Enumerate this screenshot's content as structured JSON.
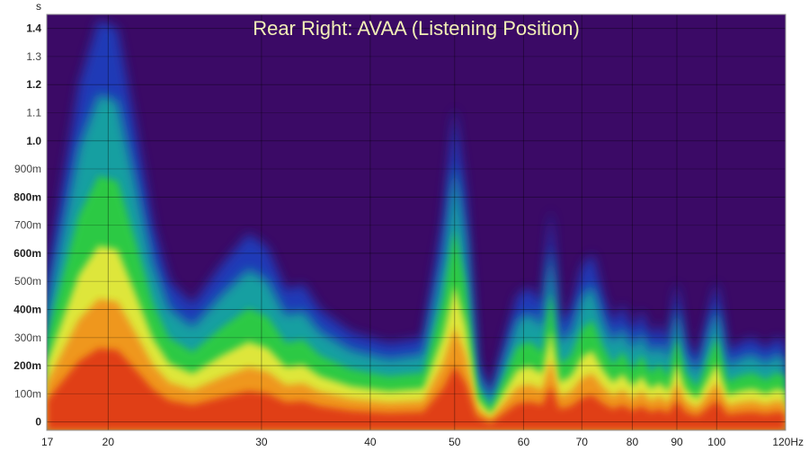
{
  "chart_data": {
    "type": "heatmap",
    "subtype": "spectrogram",
    "title": "Rear Right: AVAA (Listening Position)",
    "x_scale": "log",
    "xlim": [
      17,
      120
    ],
    "ylim": [
      -0.03,
      1.45
    ],
    "y_unit_label": "s",
    "x_unit_label": "Hz",
    "grid": true,
    "background_color": "#3b0a66",
    "y_ticks": [
      {
        "value": 1.4,
        "label": "1.4",
        "major": true
      },
      {
        "value": 1.3,
        "label": "1.3",
        "major": false
      },
      {
        "value": 1.2,
        "label": "1.2",
        "major": true
      },
      {
        "value": 1.1,
        "label": "1.1",
        "major": false
      },
      {
        "value": 1.0,
        "label": "1.0",
        "major": true
      },
      {
        "value": 0.9,
        "label": "900m",
        "major": false
      },
      {
        "value": 0.8,
        "label": "800m",
        "major": true
      },
      {
        "value": 0.7,
        "label": "700m",
        "major": false
      },
      {
        "value": 0.6,
        "label": "600m",
        "major": true
      },
      {
        "value": 0.5,
        "label": "500m",
        "major": false
      },
      {
        "value": 0.4,
        "label": "400m",
        "major": true
      },
      {
        "value": 0.3,
        "label": "300m",
        "major": false
      },
      {
        "value": 0.2,
        "label": "200m",
        "major": true
      },
      {
        "value": 0.1,
        "label": "100m",
        "major": false
      },
      {
        "value": 0.0,
        "label": "0",
        "major": true
      }
    ],
    "x_ticks": [
      {
        "value": 17,
        "label": "17"
      },
      {
        "value": 20,
        "label": "20"
      },
      {
        "value": 30,
        "label": "30"
      },
      {
        "value": 40,
        "label": "40"
      },
      {
        "value": 50,
        "label": "50"
      },
      {
        "value": 60,
        "label": "60"
      },
      {
        "value": 70,
        "label": "70"
      },
      {
        "value": 80,
        "label": "80"
      },
      {
        "value": 90,
        "label": "90"
      },
      {
        "value": 100,
        "label": "100"
      },
      {
        "value": 120,
        "label": "120Hz"
      }
    ],
    "decay_envelope": [
      {
        "hz": 17,
        "t": 0.5
      },
      {
        "hz": 18.5,
        "t": 1.2
      },
      {
        "hz": 19.5,
        "t": 1.43
      },
      {
        "hz": 20.5,
        "t": 1.4
      },
      {
        "hz": 21.5,
        "t": 1.05
      },
      {
        "hz": 22.5,
        "t": 0.7
      },
      {
        "hz": 23.5,
        "t": 0.5
      },
      {
        "hz": 25,
        "t": 0.42
      },
      {
        "hz": 27,
        "t": 0.56
      },
      {
        "hz": 29,
        "t": 0.67
      },
      {
        "hz": 30.5,
        "t": 0.62
      },
      {
        "hz": 32,
        "t": 0.47
      },
      {
        "hz": 33.5,
        "t": 0.49
      },
      {
        "hz": 35,
        "t": 0.4
      },
      {
        "hz": 38,
        "t": 0.32
      },
      {
        "hz": 42,
        "t": 0.28
      },
      {
        "hz": 46,
        "t": 0.3
      },
      {
        "hz": 48.5,
        "t": 0.72
      },
      {
        "hz": 50,
        "t": 1.12
      },
      {
        "hz": 51.5,
        "t": 0.8
      },
      {
        "hz": 53,
        "t": 0.22
      },
      {
        "hz": 55,
        "t": 0.1
      },
      {
        "hz": 57,
        "t": 0.28
      },
      {
        "hz": 59,
        "t": 0.45
      },
      {
        "hz": 61,
        "t": 0.48
      },
      {
        "hz": 63,
        "t": 0.42
      },
      {
        "hz": 64.5,
        "t": 0.76
      },
      {
        "hz": 66,
        "t": 0.35
      },
      {
        "hz": 68,
        "t": 0.4
      },
      {
        "hz": 70,
        "t": 0.55
      },
      {
        "hz": 72,
        "t": 0.6
      },
      {
        "hz": 74,
        "t": 0.45
      },
      {
        "hz": 76,
        "t": 0.35
      },
      {
        "hz": 78,
        "t": 0.42
      },
      {
        "hz": 80,
        "t": 0.32
      },
      {
        "hz": 82,
        "t": 0.4
      },
      {
        "hz": 84,
        "t": 0.3
      },
      {
        "hz": 86,
        "t": 0.35
      },
      {
        "hz": 88,
        "t": 0.28
      },
      {
        "hz": 90,
        "t": 0.5
      },
      {
        "hz": 92,
        "t": 0.3
      },
      {
        "hz": 95,
        "t": 0.22
      },
      {
        "hz": 100,
        "t": 0.5
      },
      {
        "hz": 103,
        "t": 0.25
      },
      {
        "hz": 106,
        "t": 0.28
      },
      {
        "hz": 110,
        "t": 0.3
      },
      {
        "hz": 114,
        "t": 0.26
      },
      {
        "hz": 117,
        "t": 0.3
      },
      {
        "hz": 120,
        "t": 0.28
      }
    ],
    "color_bands": [
      {
        "level": "low",
        "color": "#1f3fc0",
        "scale": 1.0
      },
      {
        "level": "mid-low",
        "color": "#16a5a0",
        "scale": 0.82
      },
      {
        "level": "mid",
        "color": "#2ecc40",
        "scale": 0.62
      },
      {
        "level": "mid-high",
        "color": "#e8e83a",
        "scale": 0.45
      },
      {
        "level": "high",
        "color": "#f0931e",
        "scale": 0.32
      },
      {
        "level": "peak",
        "color": "#e03a14",
        "scale": 0.2
      }
    ]
  }
}
